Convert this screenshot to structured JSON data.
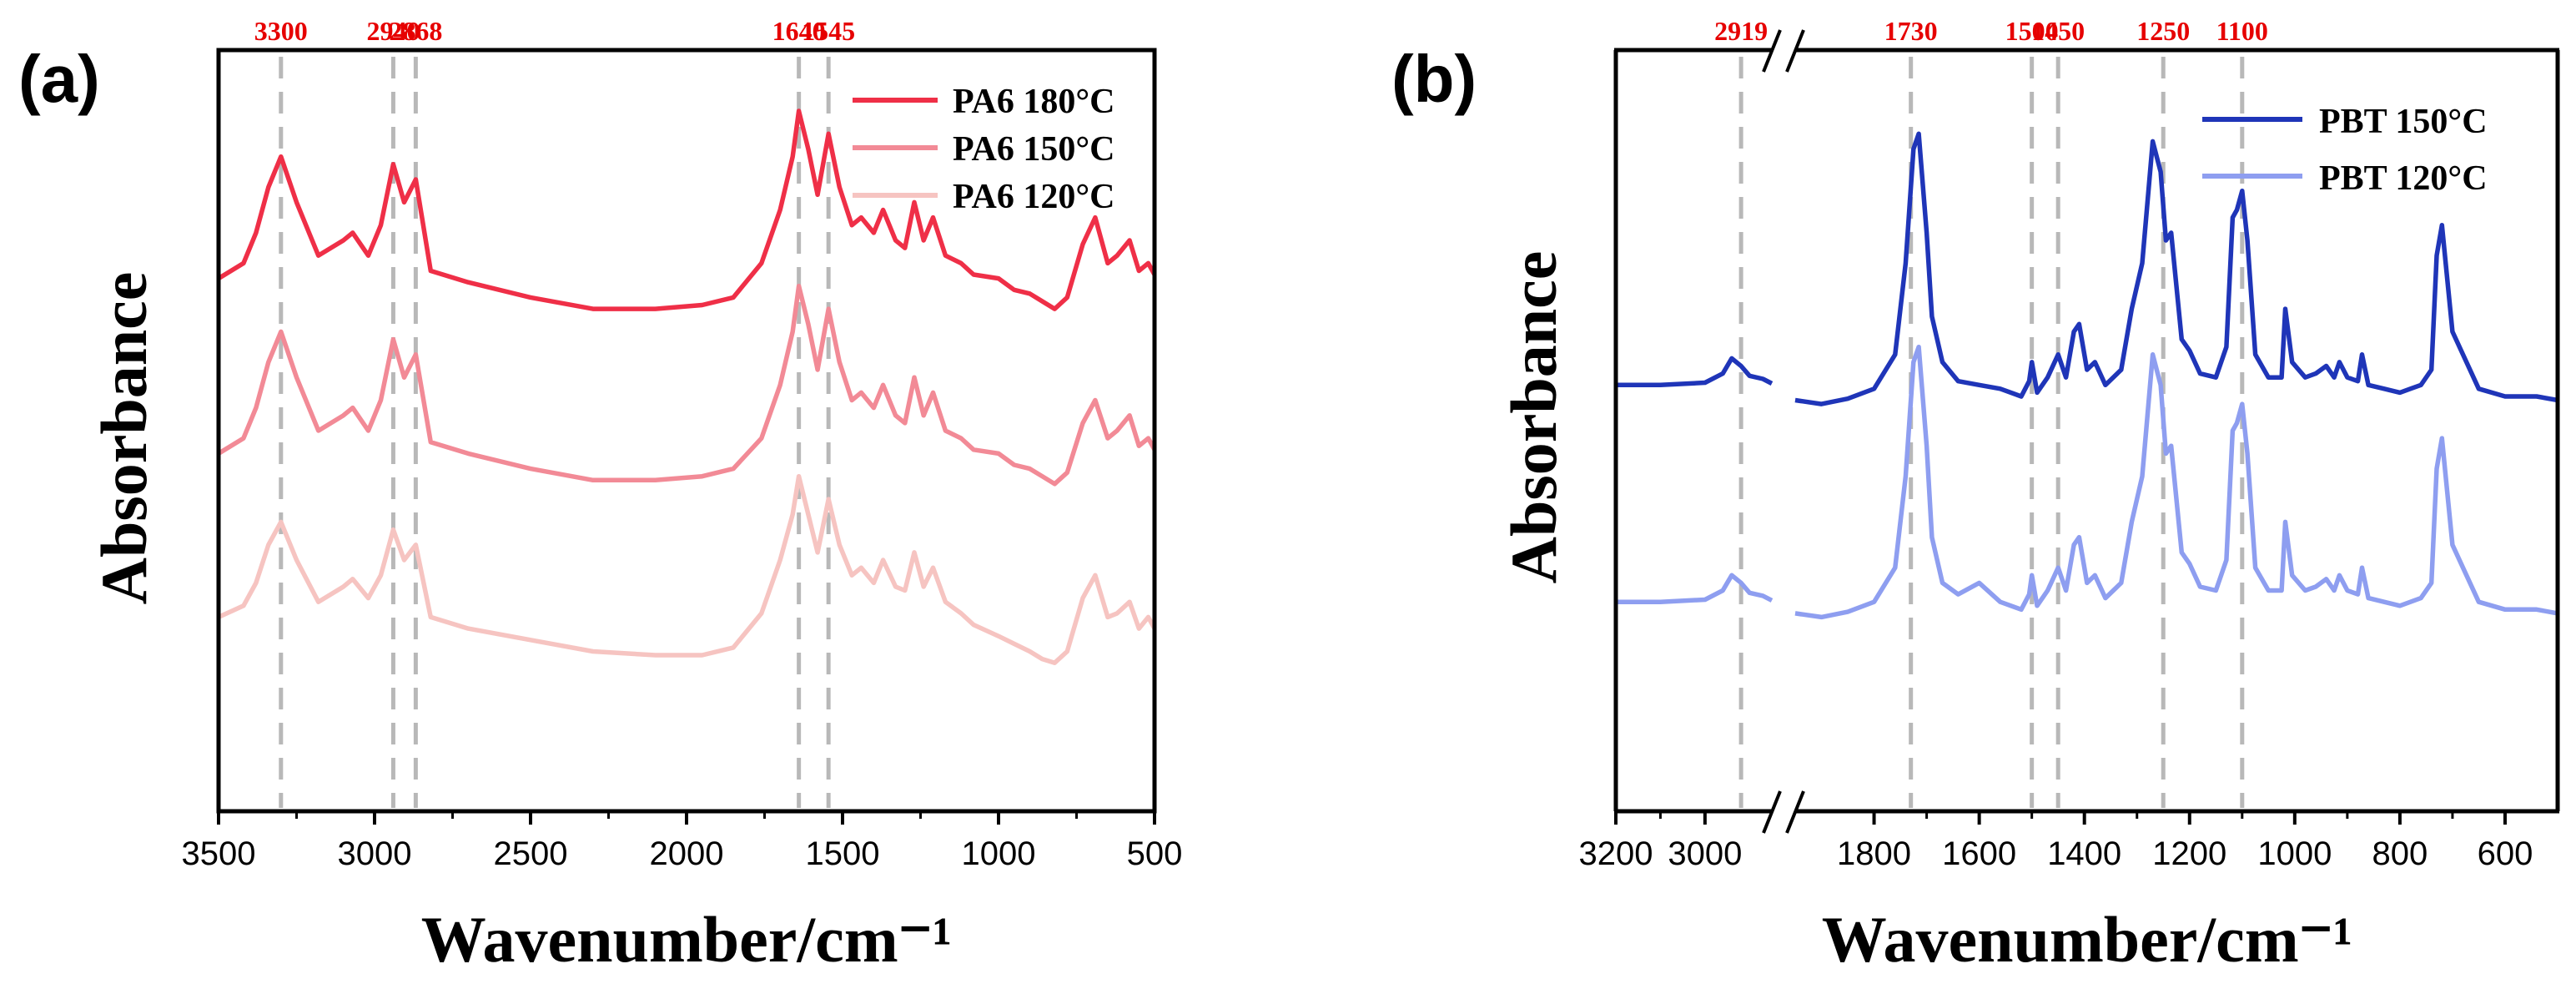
{
  "colors": {
    "PA6 180°C": "#ef2f47",
    "PA6 150°C": "#f28a96",
    "PA6 120°C": "#f6c4c1",
    "PBT 150°C": "#1f35b8",
    "PBT 120°C": "#8e9ef0",
    "marker": "#b8b8b8",
    "peak_text": "#e60000"
  },
  "chart_data": [
    {
      "panel": "(a)",
      "type": "line",
      "xlabel": "Wavenumber/cm⁻¹",
      "ylabel": "Absorbance",
      "xlim": [
        3500,
        500
      ],
      "xticks": [
        3500,
        3000,
        2500,
        2000,
        1500,
        1000,
        500
      ],
      "ylim": [
        0,
        10
      ],
      "y_ticks_labels": false,
      "legend_position": "top-right",
      "peak_markers": [
        3300,
        2940,
        2868,
        1640,
        1545
      ],
      "series": [
        {
          "name": "PA6 180°C",
          "color": "#ef2f47",
          "x": [
            3500,
            3420,
            3380,
            3340,
            3300,
            3250,
            3180,
            3100,
            3070,
            3020,
            2980,
            2940,
            2905,
            2868,
            2820,
            2700,
            2500,
            2300,
            2100,
            1950,
            1850,
            1760,
            1700,
            1660,
            1640,
            1610,
            1580,
            1545,
            1510,
            1470,
            1440,
            1400,
            1370,
            1330,
            1300,
            1270,
            1240,
            1210,
            1170,
            1120,
            1080,
            1000,
            950,
            900,
            860,
            820,
            780,
            730,
            690,
            650,
            620,
            580,
            550,
            520,
            500
          ],
          "y": [
            7.0,
            7.2,
            7.6,
            8.2,
            8.6,
            8.0,
            7.3,
            7.5,
            7.6,
            7.3,
            7.7,
            8.5,
            8.0,
            8.3,
            7.1,
            6.95,
            6.75,
            6.6,
            6.6,
            6.65,
            6.75,
            7.2,
            7.9,
            8.6,
            9.2,
            8.7,
            8.1,
            8.9,
            8.2,
            7.7,
            7.8,
            7.6,
            7.9,
            7.5,
            7.4,
            8.0,
            7.5,
            7.8,
            7.3,
            7.2,
            7.05,
            7.0,
            6.85,
            6.8,
            6.7,
            6.6,
            6.75,
            7.45,
            7.8,
            7.2,
            7.3,
            7.5,
            7.1,
            7.2,
            7.05
          ]
        },
        {
          "name": "PA6 150°C",
          "color": "#f28a96",
          "x": [
            3500,
            3420,
            3380,
            3340,
            3300,
            3250,
            3180,
            3100,
            3070,
            3020,
            2980,
            2940,
            2905,
            2868,
            2820,
            2700,
            2500,
            2300,
            2100,
            1950,
            1850,
            1760,
            1700,
            1660,
            1640,
            1610,
            1580,
            1545,
            1510,
            1470,
            1440,
            1400,
            1370,
            1330,
            1300,
            1270,
            1240,
            1210,
            1170,
            1120,
            1080,
            1000,
            950,
            900,
            860,
            820,
            780,
            730,
            690,
            650,
            620,
            580,
            550,
            520,
            500
          ],
          "y": [
            4.7,
            4.9,
            5.3,
            5.9,
            6.3,
            5.7,
            5.0,
            5.2,
            5.3,
            5.0,
            5.4,
            6.2,
            5.7,
            6.0,
            4.85,
            4.7,
            4.5,
            4.35,
            4.35,
            4.4,
            4.5,
            4.9,
            5.6,
            6.3,
            6.9,
            6.4,
            5.8,
            6.6,
            5.9,
            5.4,
            5.5,
            5.3,
            5.6,
            5.2,
            5.1,
            5.7,
            5.2,
            5.5,
            5.0,
            4.9,
            4.75,
            4.7,
            4.55,
            4.5,
            4.4,
            4.3,
            4.45,
            5.1,
            5.4,
            4.9,
            5.0,
            5.2,
            4.8,
            4.9,
            4.75
          ]
        },
        {
          "name": "PA6 120°C",
          "color": "#f6c4c1",
          "x": [
            3500,
            3420,
            3380,
            3340,
            3300,
            3250,
            3180,
            3100,
            3070,
            3020,
            2980,
            2940,
            2905,
            2868,
            2820,
            2700,
            2500,
            2300,
            2100,
            1950,
            1850,
            1760,
            1700,
            1660,
            1640,
            1610,
            1580,
            1545,
            1510,
            1470,
            1440,
            1400,
            1370,
            1330,
            1300,
            1270,
            1240,
            1210,
            1170,
            1120,
            1080,
            1000,
            950,
            900,
            860,
            820,
            780,
            730,
            690,
            650,
            620,
            580,
            550,
            520,
            500
          ],
          "y": [
            2.55,
            2.7,
            3.0,
            3.5,
            3.8,
            3.3,
            2.75,
            2.95,
            3.05,
            2.8,
            3.1,
            3.7,
            3.3,
            3.5,
            2.55,
            2.4,
            2.25,
            2.1,
            2.05,
            2.05,
            2.15,
            2.6,
            3.3,
            3.9,
            4.4,
            3.9,
            3.4,
            4.1,
            3.5,
            3.1,
            3.2,
            3.0,
            3.3,
            2.95,
            2.9,
            3.4,
            2.95,
            3.2,
            2.75,
            2.6,
            2.45,
            2.3,
            2.2,
            2.1,
            2.0,
            1.95,
            2.1,
            2.8,
            3.1,
            2.55,
            2.6,
            2.75,
            2.4,
            2.55,
            2.4
          ]
        }
      ]
    },
    {
      "panel": "(b)",
      "type": "line",
      "xlabel": "Wavenumber/cm⁻¹",
      "ylabel": "Absorbance",
      "broken_axis": true,
      "xlim_segments": [
        [
          3200,
          2850
        ],
        [
          1950,
          500
        ]
      ],
      "xticks": [
        3200,
        3000,
        1800,
        1600,
        1400,
        1200,
        1000,
        800,
        600
      ],
      "ylim": [
        0,
        10
      ],
      "y_ticks_labels": false,
      "legend_position": "top-right",
      "peak_markers": [
        2919,
        1730,
        1500,
        1450,
        1250,
        1100
      ],
      "series": [
        {
          "name": "PBT 150°C",
          "color": "#1f35b8",
          "segments": [
            {
              "x": [
                3200,
                3100,
                3000,
                2960,
                2940,
                2919,
                2900,
                2870,
                2850
              ],
              "y": [
                5.6,
                5.6,
                5.63,
                5.75,
                5.95,
                5.85,
                5.72,
                5.68,
                5.62
              ]
            },
            {
              "x": [
                1950,
                1900,
                1850,
                1800,
                1760,
                1740,
                1725,
                1715,
                1700,
                1690,
                1670,
                1640,
                1600,
                1560,
                1520,
                1505,
                1500,
                1490,
                1470,
                1450,
                1435,
                1420,
                1410,
                1395,
                1380,
                1360,
                1330,
                1310,
                1290,
                1270,
                1255,
                1245,
                1235,
                1215,
                1200,
                1180,
                1150,
                1130,
                1118,
                1110,
                1100,
                1090,
                1075,
                1050,
                1025,
                1018,
                1005,
                980,
                960,
                940,
                925,
                915,
                900,
                880,
                872,
                860,
                830,
                800,
                780,
                760,
                740,
                730,
                720,
                700,
                650,
                600,
                540,
                500
              ],
              "y": [
                5.4,
                5.35,
                5.42,
                5.55,
                6.0,
                7.2,
                8.7,
                8.9,
                7.6,
                6.5,
                5.9,
                5.65,
                5.6,
                5.55,
                5.45,
                5.65,
                5.9,
                5.5,
                5.7,
                6.0,
                5.7,
                6.3,
                6.4,
                5.8,
                5.9,
                5.6,
                5.8,
                6.6,
                7.2,
                8.8,
                8.4,
                7.5,
                7.6,
                6.2,
                6.05,
                5.75,
                5.7,
                6.1,
                7.8,
                7.9,
                8.15,
                7.5,
                6.0,
                5.7,
                5.7,
                6.6,
                5.9,
                5.7,
                5.75,
                5.85,
                5.7,
                5.9,
                5.7,
                5.65,
                6.0,
                5.6,
                5.55,
                5.5,
                5.55,
                5.6,
                5.8,
                7.3,
                7.7,
                6.3,
                5.55,
                5.45,
                5.45,
                5.4
              ]
            }
          ]
        },
        {
          "name": "PBT 120°C",
          "color": "#8e9ef0",
          "segments": [
            {
              "x": [
                3200,
                3100,
                3000,
                2960,
                2940,
                2919,
                2900,
                2870,
                2850
              ],
              "y": [
                2.75,
                2.75,
                2.78,
                2.9,
                3.1,
                3.0,
                2.87,
                2.83,
                2.77
              ]
            },
            {
              "x": [
                1950,
                1900,
                1850,
                1800,
                1760,
                1740,
                1725,
                1715,
                1700,
                1690,
                1670,
                1640,
                1600,
                1560,
                1520,
                1505,
                1500,
                1490,
                1470,
                1450,
                1435,
                1420,
                1410,
                1395,
                1380,
                1360,
                1330,
                1310,
                1290,
                1270,
                1255,
                1245,
                1235,
                1215,
                1200,
                1180,
                1150,
                1130,
                1118,
                1110,
                1100,
                1090,
                1075,
                1050,
                1025,
                1018,
                1005,
                980,
                960,
                940,
                925,
                915,
                900,
                880,
                872,
                860,
                830,
                800,
                780,
                760,
                740,
                730,
                720,
                700,
                650,
                600,
                540,
                500
              ],
              "y": [
                2.6,
                2.55,
                2.62,
                2.75,
                3.2,
                4.4,
                5.9,
                6.1,
                4.8,
                3.6,
                3.0,
                2.85,
                3.0,
                2.75,
                2.65,
                2.85,
                3.1,
                2.7,
                2.9,
                3.2,
                2.9,
                3.5,
                3.6,
                3.0,
                3.1,
                2.8,
                3.0,
                3.8,
                4.4,
                6.0,
                5.6,
                4.7,
                4.8,
                3.4,
                3.25,
                2.95,
                2.9,
                3.3,
                5.0,
                5.1,
                5.35,
                4.7,
                3.2,
                2.9,
                2.9,
                3.8,
                3.1,
                2.9,
                2.95,
                3.05,
                2.9,
                3.1,
                2.9,
                2.85,
                3.2,
                2.8,
                2.75,
                2.7,
                2.75,
                2.8,
                3.0,
                4.5,
                4.9,
                3.5,
                2.75,
                2.65,
                2.65,
                2.6
              ]
            }
          ]
        }
      ]
    }
  ]
}
